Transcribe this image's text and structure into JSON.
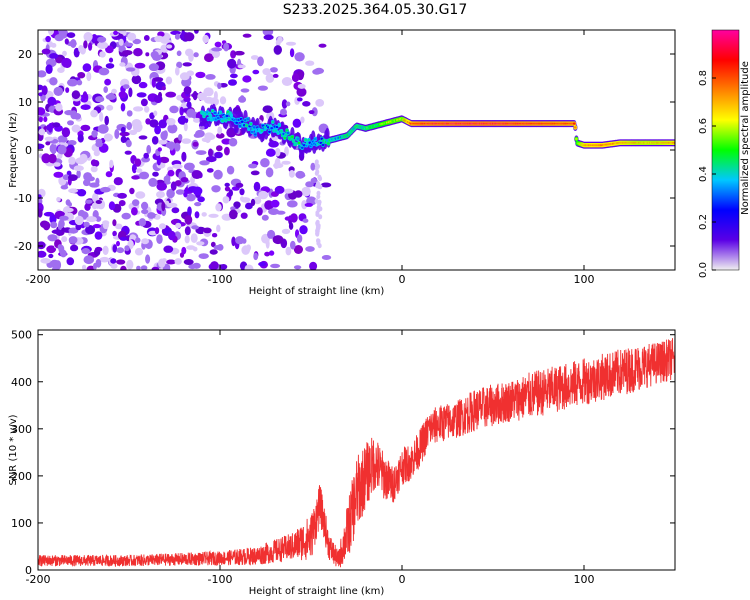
{
  "title": "S233.2025.364.05.30.G17",
  "chart_data": [
    {
      "type": "heatmap",
      "name": "spectrogram",
      "xlabel": "Height of straight line (km)",
      "ylabel": "Frequency (Hz)",
      "xlim": [
        -200,
        150
      ],
      "ylim": [
        -25,
        25
      ],
      "xticks": [
        -200,
        -100,
        0,
        100
      ],
      "xtick_labels": [
        "-200",
        "-100",
        "0",
        "100"
      ],
      "yticks": [
        -20,
        -10,
        0,
        10,
        20
      ],
      "ytick_labels": [
        "-20",
        "-10",
        "0",
        "10",
        "20"
      ],
      "colorbar": {
        "label": "Normalized spectral amplitude",
        "range": [
          0,
          1
        ],
        "ticks": [
          0,
          0.2,
          0.4,
          0.6,
          0.8
        ],
        "tick_labels": [
          "0.0",
          "0.2",
          "0.4",
          "0.6",
          "0.8"
        ],
        "colors": [
          "#f0f0f0",
          "#5a00e6",
          "#0000ff",
          "#00c8ff",
          "#00ff00",
          "#ffff00",
          "#ff8000",
          "#ff0000",
          "#ff00a0"
        ]
      },
      "noise_region_x": [
        -200,
        -45
      ],
      "signal_track": {
        "x": [
          -110,
          -100,
          -95,
          -90,
          -85,
          -80,
          -75,
          -70,
          -65,
          -60,
          -55,
          -50,
          -45,
          -40,
          -35,
          -30,
          -25,
          -20,
          -15,
          -10,
          -5,
          0,
          5,
          10,
          30,
          50,
          70,
          95,
          96,
          100,
          110,
          120,
          130,
          140,
          150
        ],
        "frequency": [
          7.5,
          7,
          7,
          6,
          5.5,
          4,
          4.5,
          5,
          3.5,
          2.5,
          1,
          1.5,
          2,
          2,
          2.5,
          3,
          5,
          4.5,
          5,
          5.5,
          6,
          6.5,
          5.5,
          5.5,
          5.5,
          5.5,
          5.5,
          5.5,
          1.5,
          1,
          1,
          1.5,
          1.5,
          1.5,
          1.5
        ],
        "amplitude": [
          0.35,
          0.3,
          0.35,
          0.3,
          0.35,
          0.3,
          0.35,
          0.3,
          0.35,
          0.4,
          0.35,
          0.3,
          0.35,
          0.4,
          0.35,
          0.45,
          0.4,
          0.45,
          0.5,
          0.55,
          0.6,
          0.6,
          0.85,
          0.9,
          0.95,
          0.95,
          0.9,
          0.85,
          0.5,
          0.75,
          0.8,
          0.75,
          0.7,
          0.7,
          0.75
        ]
      }
    },
    {
      "type": "line",
      "name": "snr",
      "xlabel": "Height of straight line (km)",
      "ylabel": "SNR (10 * v/v)",
      "xlim": [
        -200,
        150
      ],
      "ylim": [
        0,
        510
      ],
      "xticks": [
        -200,
        -100,
        0,
        100
      ],
      "xtick_labels": [
        "-200",
        "-100",
        "0",
        "100"
      ],
      "yticks": [
        0,
        100,
        200,
        300,
        400,
        500
      ],
      "ytick_labels": [
        "0",
        "100",
        "200",
        "300",
        "400",
        "500"
      ],
      "series": [
        {
          "name": "SNR",
          "color": "#f03030",
          "x": [
            -200,
            -150,
            -100,
            -80,
            -70,
            -60,
            -50,
            -45,
            -40,
            -35,
            -30,
            -25,
            -20,
            -15,
            -10,
            -5,
            0,
            5,
            10,
            15,
            20,
            30,
            40,
            50,
            60,
            70,
            80,
            90,
            100,
            110,
            120,
            130,
            140,
            150
          ],
          "mean": [
            20,
            20,
            25,
            30,
            40,
            50,
            70,
            140,
            50,
            20,
            80,
            160,
            200,
            230,
            200,
            180,
            220,
            230,
            260,
            300,
            310,
            320,
            340,
            350,
            360,
            370,
            380,
            390,
            400,
            410,
            420,
            430,
            440,
            450
          ],
          "spread": [
            12,
            12,
            15,
            20,
            25,
            30,
            50,
            45,
            30,
            20,
            60,
            80,
            70,
            60,
            50,
            40,
            40,
            40,
            40,
            40,
            40,
            40,
            45,
            45,
            45,
            50,
            50,
            50,
            50,
            50,
            50,
            50,
            45,
            45
          ]
        }
      ]
    }
  ]
}
